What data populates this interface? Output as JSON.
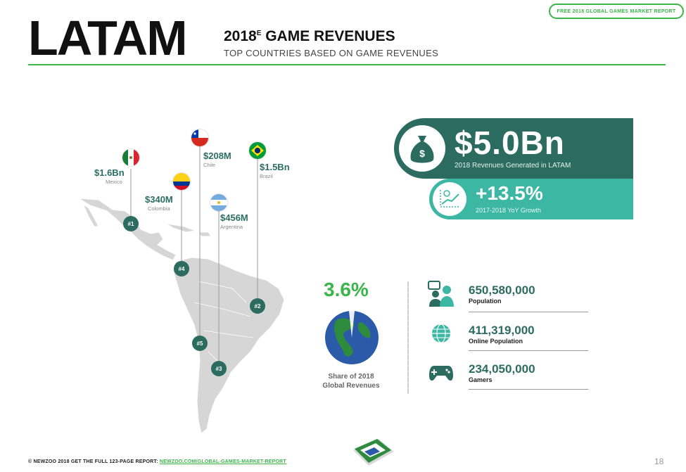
{
  "header": {
    "badge": "FREE 2018 GLOBAL GAMES MARKET REPORT",
    "region": "LATAM",
    "title_main": "2018",
    "title_sup": "E",
    "title_rest": " GAME REVENUES",
    "subtitle": "TOP COUNTRIES BASED ON GAME REVENUES"
  },
  "countries": [
    {
      "rank": "#1",
      "value": "$1.6Bn",
      "name": "Mexico"
    },
    {
      "rank": "#2",
      "value": "$1.5Bn",
      "name": "Brazil"
    },
    {
      "rank": "#3",
      "value": "$456M",
      "name": "Argentina"
    },
    {
      "rank": "#4",
      "value": "$340M",
      "name": "Colombia"
    },
    {
      "rank": "#5",
      "value": "$208M",
      "name": "Chile"
    }
  ],
  "revenue": {
    "amount": "$5.0Bn",
    "caption": "2018 Revenues Generated in LATAM",
    "growth": "+13.5%",
    "growth_caption": "2017-2018 YoY Growth",
    "bag_symbol": "$"
  },
  "share": {
    "percent": "3.6%",
    "caption_line1": "Share of 2018",
    "caption_line2": "Global Revenues"
  },
  "stats": [
    {
      "value": "650,580,000",
      "label": "Population",
      "icon": "people-icon"
    },
    {
      "value": "411,319,000",
      "label": "Online Population",
      "icon": "globe-icon"
    },
    {
      "value": "234,050,000",
      "label": "Gamers",
      "icon": "gamepad-icon"
    }
  ],
  "footer": {
    "copyright": "© NEWZOO 2018",
    "cta": "GET THE FULL 123-PAGE REPORT:",
    "link": "NEWZOO.COM/GLOBAL-GAMES-MARKET-REPORT",
    "page": "18"
  },
  "colors": {
    "brand_green": "#3ab549",
    "dark_teal": "#2b6b60",
    "light_teal": "#3bb7a3"
  }
}
